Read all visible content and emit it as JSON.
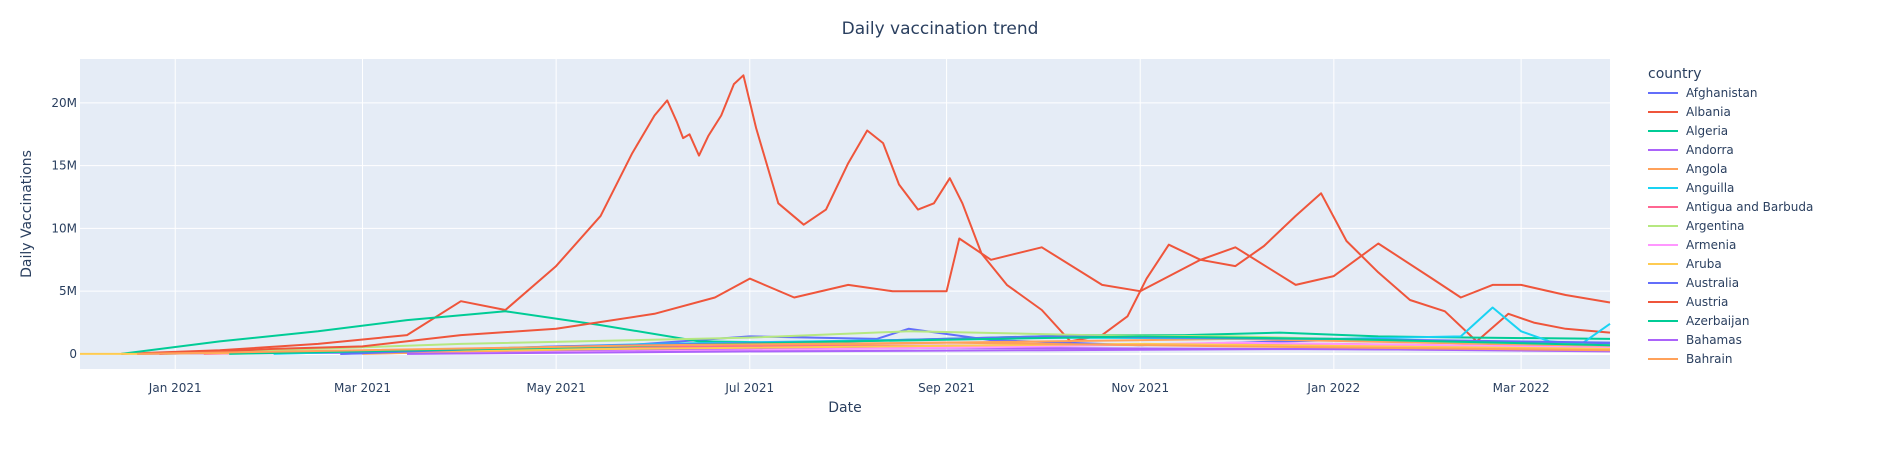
{
  "chart_data": {
    "type": "line",
    "title": "Daily vaccination trend",
    "xlabel": "Date",
    "ylabel": "Daily Vaccinations",
    "x_range": [
      "2020-12-02",
      "2022-03-29"
    ],
    "ylim": [
      -1200000,
      23500000
    ],
    "x_ticks": [
      {
        "date": "2021-01-01",
        "label": "Jan 2021"
      },
      {
        "date": "2021-03-01",
        "label": "Mar 2021"
      },
      {
        "date": "2021-05-01",
        "label": "May 2021"
      },
      {
        "date": "2021-07-01",
        "label": "Jul 2021"
      },
      {
        "date": "2021-09-01",
        "label": "Sep 2021"
      },
      {
        "date": "2021-11-01",
        "label": "Nov 2021"
      },
      {
        "date": "2022-01-01",
        "label": "Jan 2022"
      },
      {
        "date": "2022-03-01",
        "label": "Mar 2022"
      }
    ],
    "y_ticks": [
      {
        "value": 0,
        "label": "0"
      },
      {
        "value": 5000000,
        "label": "5M"
      },
      {
        "value": 10000000,
        "label": "10M"
      },
      {
        "value": 15000000,
        "label": "15M"
      },
      {
        "value": 20000000,
        "label": "20M"
      }
    ],
    "grid": true,
    "plot_background": "#e5ecf6",
    "legend": {
      "title": "country",
      "placement": "right"
    },
    "series": [
      {
        "name": "Afghanistan",
        "color": "#636efa",
        "x": [
          "2021-02-22",
          "2021-05-01",
          "2021-07-01",
          "2021-08-10",
          "2021-08-20",
          "2021-09-15",
          "2021-11-01",
          "2022-01-01",
          "2022-03-01",
          "2022-03-29"
        ],
        "y": [
          0,
          300000,
          1400000,
          1200000,
          2000000,
          1100000,
          700000,
          1100000,
          900000,
          800000
        ]
      },
      {
        "name": "Albania",
        "color": "#ef553b",
        "x": [
          "2020-12-15",
          "2021-01-15",
          "2021-02-15",
          "2021-03-15",
          "2021-04-01",
          "2021-04-15",
          "2021-05-01",
          "2021-05-15",
          "2021-05-25",
          "2021-06-01",
          "2021-06-05",
          "2021-06-08",
          "2021-06-10",
          "2021-06-12",
          "2021-06-15",
          "2021-06-18",
          "2021-06-22",
          "2021-06-26",
          "2021-06-29",
          "2021-07-03",
          "2021-07-10",
          "2021-07-18",
          "2021-07-25",
          "2021-08-01",
          "2021-08-07",
          "2021-08-12",
          "2021-08-17",
          "2021-08-23",
          "2021-08-28",
          "2021-09-02",
          "2021-09-06",
          "2021-09-12",
          "2021-09-20",
          "2021-10-01",
          "2021-10-10",
          "2021-10-20",
          "2021-10-28",
          "2021-11-03",
          "2021-11-10",
          "2021-11-20",
          "2021-12-01",
          "2021-12-10",
          "2021-12-20",
          "2021-12-28",
          "2022-01-05",
          "2022-01-15",
          "2022-01-25",
          "2022-02-05",
          "2022-02-15",
          "2022-02-25",
          "2022-03-05",
          "2022-03-15",
          "2022-03-29"
        ],
        "y": [
          0,
          300000,
          800000,
          1500000,
          4200000,
          3500000,
          7000000,
          11000000,
          16000000,
          19000000,
          20200000,
          18500000,
          17200000,
          17500000,
          15800000,
          17400000,
          19000000,
          21500000,
          22200000,
          18000000,
          12000000,
          10300000,
          11500000,
          15200000,
          17800000,
          16800000,
          13500000,
          11500000,
          12000000,
          14000000,
          12000000,
          8000000,
          5500000,
          3500000,
          1000000,
          1500000,
          3000000,
          6000000,
          8700000,
          7500000,
          7000000,
          8600000,
          11000000,
          12800000,
          9000000,
          6500000,
          4300000,
          3400000,
          1000000,
          3200000,
          2500000,
          2000000,
          1700000
        ]
      },
      {
        "name": "Algeria",
        "color": "#00cc96",
        "x": [
          "2020-12-15",
          "2021-01-15",
          "2021-02-15",
          "2021-03-15",
          "2021-04-15",
          "2021-05-15",
          "2021-06-15",
          "2021-07-15",
          "2021-08-15",
          "2021-09-15",
          "2021-10-15",
          "2021-11-15",
          "2021-12-15",
          "2022-01-15",
          "2022-02-15",
          "2022-03-29"
        ],
        "y": [
          0,
          1000000,
          1800000,
          2700000,
          3400000,
          2300000,
          1000000,
          900000,
          1100000,
          1300000,
          1500000,
          1500000,
          1700000,
          1400000,
          1300000,
          1200000
        ]
      },
      {
        "name": "Andorra",
        "color": "#ab63fa",
        "x": [
          "2020-12-20",
          "2021-03-01",
          "2021-06-01",
          "2021-09-01",
          "2021-12-01",
          "2022-03-29"
        ],
        "y": [
          0,
          100000,
          300000,
          500000,
          400000,
          300000
        ]
      },
      {
        "name": "Angola",
        "color": "#ffa15a",
        "x": [
          "2021-03-01",
          "2021-06-01",
          "2021-09-01",
          "2021-12-01",
          "2022-03-29"
        ],
        "y": [
          0,
          500000,
          900000,
          1200000,
          600000
        ]
      },
      {
        "name": "Anguilla",
        "color": "#19d3f3",
        "x": [
          "2021-02-01",
          "2021-06-01",
          "2021-10-01",
          "2022-01-01",
          "2022-02-10",
          "2022-02-20",
          "2022-03-01",
          "2022-03-10",
          "2022-03-20",
          "2022-03-29"
        ],
        "y": [
          0,
          800000,
          1300000,
          1200000,
          1400000,
          3700000,
          1800000,
          1000000,
          800000,
          2400000
        ]
      },
      {
        "name": "Antigua and Barbuda",
        "color": "#ff6692",
        "x": [
          "2021-01-10",
          "2021-04-01",
          "2021-07-01",
          "2021-10-01",
          "2022-01-01",
          "2022-03-29"
        ],
        "y": [
          0,
          400000,
          600000,
          700000,
          800000,
          500000
        ]
      },
      {
        "name": "Argentina",
        "color": "#b6e880",
        "x": [
          "2020-12-29",
          "2021-04-01",
          "2021-07-01",
          "2021-08-20",
          "2021-09-10",
          "2021-10-15",
          "2021-12-01",
          "2022-02-01",
          "2022-03-29"
        ],
        "y": [
          0,
          800000,
          1300000,
          1800000,
          1700000,
          1500000,
          1400000,
          1000000,
          700000
        ]
      },
      {
        "name": "Armenia",
        "color": "#ff97ff",
        "x": [
          "2021-03-15",
          "2021-07-01",
          "2021-10-01",
          "2021-12-01",
          "2022-03-29"
        ],
        "y": [
          0,
          300000,
          600000,
          900000,
          500000
        ]
      },
      {
        "name": "Aruba",
        "color": "#fecb52",
        "x": [
          "2020-12-02",
          "2020-12-20",
          "2021-03-01",
          "2021-07-01",
          "2021-11-01",
          "2022-03-29"
        ],
        "y": [
          0,
          0,
          200000,
          500000,
          800000,
          400000
        ]
      },
      {
        "name": "Australia",
        "color": "#636efa",
        "x": [
          "2021-02-22",
          "2021-05-01",
          "2021-08-01",
          "2021-10-01",
          "2022-01-01",
          "2022-03-29"
        ],
        "y": [
          0,
          600000,
          1000000,
          1400000,
          1200000,
          900000
        ]
      },
      {
        "name": "Austria",
        "color": "#ef553b",
        "x": [
          "2020-12-27",
          "2021-02-01",
          "2021-03-01",
          "2021-04-01",
          "2021-05-01",
          "2021-06-01",
          "2021-06-20",
          "2021-07-01",
          "2021-07-15",
          "2021-08-01",
          "2021-08-15",
          "2021-09-01",
          "2021-09-05",
          "2021-09-15",
          "2021-10-01",
          "2021-10-20",
          "2021-11-01",
          "2021-11-20",
          "2021-12-01",
          "2021-12-20",
          "2022-01-01",
          "2022-01-15",
          "2022-02-01",
          "2022-02-10",
          "2022-02-20",
          "2022-03-01",
          "2022-03-15",
          "2022-03-29"
        ],
        "y": [
          0,
          400000,
          600000,
          1500000,
          2000000,
          3200000,
          4500000,
          6000000,
          4500000,
          5500000,
          5000000,
          5000000,
          9200000,
          7500000,
          8500000,
          5500000,
          5000000,
          7500000,
          8500000,
          5500000,
          6200000,
          8800000,
          6000000,
          4500000,
          5500000,
          5500000,
          4700000,
          4100000
        ]
      },
      {
        "name": "Azerbaijan",
        "color": "#00cc96",
        "x": [
          "2021-01-18",
          "2021-05-01",
          "2021-08-01",
          "2021-11-01",
          "2022-01-01",
          "2022-03-29"
        ],
        "y": [
          0,
          500000,
          1000000,
          1400000,
          1200000,
          700000
        ]
      },
      {
        "name": "Bahamas",
        "color": "#ab63fa",
        "x": [
          "2021-03-15",
          "2021-07-01",
          "2021-10-01",
          "2022-01-01",
          "2022-03-29"
        ],
        "y": [
          0,
          200000,
          300000,
          400000,
          200000
        ]
      },
      {
        "name": "Bahrain",
        "color": "#ffa15a",
        "x": [
          "2020-12-20",
          "2021-03-01",
          "2021-06-01",
          "2021-09-01",
          "2021-12-01",
          "2022-03-29"
        ],
        "y": [
          0,
          300000,
          700000,
          900000,
          600000,
          300000
        ]
      }
    ]
  }
}
